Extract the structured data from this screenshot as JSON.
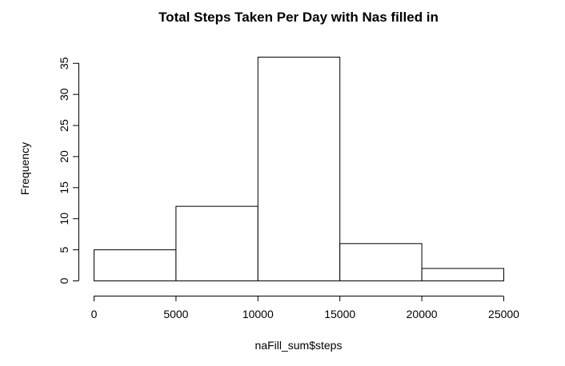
{
  "chart_data": {
    "type": "bar",
    "title": "Total Steps Taken Per Day with Nas filled in",
    "xlabel": "naFill_sum$steps",
    "ylabel": "Frequency",
    "bins": [
      {
        "from": 0,
        "to": 5000,
        "count": 5
      },
      {
        "from": 5000,
        "to": 10000,
        "count": 12
      },
      {
        "from": 10000,
        "to": 15000,
        "count": 36
      },
      {
        "from": 15000,
        "to": 20000,
        "count": 6
      },
      {
        "from": 20000,
        "to": 25000,
        "count": 2
      }
    ],
    "xticks": [
      0,
      5000,
      10000,
      15000,
      20000,
      25000
    ],
    "yticks": [
      0,
      5,
      10,
      15,
      20,
      25,
      30,
      35
    ],
    "xlim": [
      0,
      25000
    ],
    "ylim": [
      0,
      36
    ],
    "grid": false,
    "bar_fill": "#ffffff",
    "bar_stroke": "#000000"
  }
}
